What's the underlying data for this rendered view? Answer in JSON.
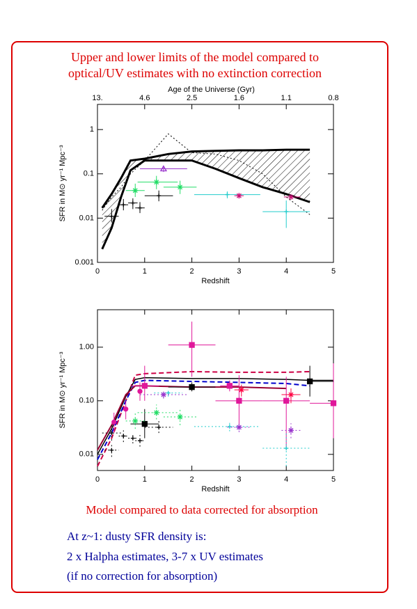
{
  "chart_data": [
    {
      "type": "scatter",
      "title": [
        "Upper and lower limits of the model compared to",
        "optical/UV estimates with no extinction correction"
      ],
      "xlabel": "Redshift",
      "ylabel": "SFR in M⊙ yr⁻¹ Mpc⁻³",
      "x2label": "Age of the Universe (Gyr)",
      "xlim": [
        0,
        5
      ],
      "xticks": [
        0,
        1,
        2,
        3,
        4,
        5
      ],
      "x2ticks": [
        {
          "value": 13,
          "label": "13."
        },
        4.6,
        2.5,
        1.6,
        1.1,
        0.8
      ],
      "ylim": [
        0.001,
        3.7
      ],
      "yticks": [
        0.001,
        0.01,
        0.1,
        1
      ],
      "log": true,
      "series": [
        {
          "style": "band",
          "color": "#000000",
          "x": [
            0.1,
            0.3,
            0.5,
            0.7,
            1,
            1.5,
            2,
            2.5,
            3,
            3.5,
            4,
            4.5
          ],
          "upper": [
            0.017,
            0.035,
            0.08,
            0.2,
            0.22,
            0.28,
            0.32,
            0.33,
            0.34,
            0.34,
            0.35,
            0.35
          ],
          "lower": [
            0.002,
            0.006,
            0.03,
            0.12,
            0.2,
            0.2,
            0.2,
            0.13,
            0.08,
            0.05,
            0.035,
            0.023
          ]
        },
        {
          "style": "line",
          "dash": "dotted",
          "width": 1,
          "color": "#000000",
          "x": [
            0.1,
            0.3,
            0.5,
            0.7,
            1,
            1.5,
            2,
            2.5,
            3,
            3.5,
            4,
            4.5
          ],
          "values": [
            0.015,
            0.03,
            0.05,
            0.1,
            0.2,
            0.8,
            0.3,
            0.28,
            0.2,
            0.1,
            0.03,
            0.012
          ]
        },
        {
          "style": "points",
          "marker": "plus",
          "color": "#000000",
          "err_dash": "solid",
          "x": [
            0.3,
            0.55,
            0.75,
            0.9,
            1.3
          ],
          "values": [
            0.011,
            0.02,
            0.022,
            0.017,
            0.032
          ],
          "x_low": [
            0.15,
            0.45,
            0.65,
            0.8,
            1.0
          ],
          "x_high": [
            0.45,
            0.65,
            0.85,
            1.0,
            1.6
          ],
          "y_low": [
            0.008,
            0.015,
            0.016,
            0.013,
            0.024
          ],
          "y_high": [
            0.016,
            0.027,
            0.028,
            0.023,
            0.042
          ]
        },
        {
          "style": "points",
          "marker": "star",
          "color": "#22dd66",
          "err_dash": "solid",
          "x": [
            0.8,
            1.25,
            1.75
          ],
          "values": [
            0.042,
            0.065,
            0.05
          ],
          "x_low": [
            0.6,
            0.85,
            1.4
          ],
          "x_high": [
            1.0,
            1.7,
            2.1
          ],
          "y_low": [
            0.03,
            0.045,
            0.035
          ],
          "y_high": [
            0.06,
            0.09,
            0.07
          ]
        },
        {
          "style": "points",
          "marker": "triangle",
          "color": "#9933cc",
          "err_dash": "solid",
          "x": [
            1.4
          ],
          "values": [
            0.13
          ],
          "x_low": [
            0.9
          ],
          "x_high": [
            1.9
          ],
          "y_low": [
            0.11
          ],
          "y_high": [
            0.15
          ]
        },
        {
          "style": "points",
          "marker": "plus",
          "color": "#22cccc",
          "err_dash": "solid",
          "x": [
            2.75,
            4
          ],
          "values": [
            0.034,
            0.014
          ],
          "x_low": [
            2.05,
            3.5
          ],
          "x_high": [
            3.45,
            4.5
          ],
          "y_low": [
            0.028,
            0.006
          ],
          "y_high": [
            0.04,
            0.025
          ]
        },
        {
          "style": "points",
          "marker": "star",
          "color": "#cc1177",
          "err_dash": "solid",
          "x": [
            3,
            4.1
          ],
          "values": [
            0.032,
            0.03
          ],
          "x_low": [
            2.9,
            3.95
          ],
          "x_high": [
            3.1,
            4.3
          ],
          "y_low": [
            0.028,
            0.026
          ],
          "y_high": [
            0.037,
            0.035
          ]
        }
      ]
    },
    {
      "type": "scatter",
      "title": "Model compared to data corrected for absorption",
      "xlabel": "Redshift",
      "ylabel": "SFR in M⊙ yr⁻¹ Mpc⁻³",
      "xlim": [
        0,
        5
      ],
      "xticks": [
        0,
        1,
        2,
        3,
        4,
        5
      ],
      "ylim": [
        0.005,
        5
      ],
      "yticks": [
        {
          "value": 1,
          "label": "1.00"
        },
        {
          "value": 0.1,
          "label": "0.10"
        },
        0.01
      ],
      "log": true,
      "series": [
        {
          "style": "line",
          "dash": "dashed",
          "width": 2,
          "color": "#cc0044",
          "x": [
            0,
            0.3,
            0.6,
            0.8,
            1,
            2,
            3,
            4,
            4.5
          ],
          "values": [
            0.006,
            0.02,
            0.1,
            0.3,
            0.32,
            0.35,
            0.34,
            0.34,
            0.35
          ]
        },
        {
          "style": "line",
          "dash": "solid",
          "width": 1.5,
          "color": "#000000",
          "x": [
            0,
            0.3,
            0.6,
            0.8,
            1,
            2,
            3,
            4,
            4.5,
            5
          ],
          "values": [
            0.01,
            0.03,
            0.12,
            0.25,
            0.27,
            0.26,
            0.26,
            0.25,
            0.24,
            0.24
          ]
        },
        {
          "style": "line",
          "dash": "dashed",
          "width": 2,
          "color": "#0000cc",
          "x": [
            0,
            0.3,
            0.6,
            0.8,
            1,
            2,
            3,
            4,
            4.5
          ],
          "values": [
            0.008,
            0.025,
            0.1,
            0.22,
            0.24,
            0.23,
            0.22,
            0.21,
            0.19
          ]
        },
        {
          "style": "line",
          "dash": "solid",
          "width": 2,
          "color": "#990033",
          "x": [
            0,
            0.3,
            0.6,
            0.8,
            1,
            2,
            3,
            4
          ],
          "values": [
            0.012,
            0.035,
            0.13,
            0.19,
            0.19,
            0.18,
            0.18,
            0.17
          ]
        },
        {
          "style": "points",
          "marker": "square",
          "color": "#e0179a",
          "err_dash": "solid",
          "x": [
            2,
            3,
            4,
            5,
            1,
            2.8
          ],
          "values": [
            1.1,
            0.1,
            0.1,
            0.09,
            0.19,
            0.19
          ],
          "x_low": [
            1.5,
            2.5,
            3.5,
            4.5,
            0.7,
            2.6
          ],
          "x_high": [
            2.5,
            3.5,
            4.5,
            5.5,
            1.3,
            3.0
          ],
          "y_low": [
            0.28,
            0.03,
            0.012,
            0.02,
            0.1,
            0.15
          ],
          "y_high": [
            3.0,
            0.3,
            0.28,
            0.5,
            0.45,
            0.24
          ]
        },
        {
          "style": "points",
          "marker": "star",
          "color": "#ff0040",
          "err_dash": "solid",
          "x": [
            3.05,
            4.1
          ],
          "values": [
            0.16,
            0.13
          ],
          "x_low": [
            2.9,
            3.9
          ],
          "x_high": [
            3.2,
            4.3
          ],
          "y_low": [
            0.12,
            0.09
          ],
          "y_high": [
            0.2,
            0.17
          ]
        },
        {
          "style": "points",
          "marker": "square",
          "color": "#000000",
          "err_dash": "solid",
          "x": [
            4.5,
            2,
            1
          ],
          "values": [
            0.23,
            0.18,
            0.037
          ],
          "x_low": [
            4.5,
            1.5,
            0.7
          ],
          "x_high": [
            5,
            2.5,
            1.3
          ],
          "y_low": [
            0.12,
            0.15,
            0.02
          ],
          "y_high": [
            0.45,
            0.22,
            0.07
          ]
        },
        {
          "style": "points",
          "marker": "plus",
          "color": "#22cccc",
          "err_dash": "dotted",
          "x": [
            2.8,
            4,
            1.5
          ],
          "values": [
            0.033,
            0.013,
            0.14
          ],
          "x_low": [
            2.05,
            3.5,
            1.2
          ],
          "x_high": [
            3.45,
            4.5,
            1.8
          ],
          "y_low": [
            0.027,
            0.006,
            0.12
          ],
          "y_high": [
            0.04,
            0.025,
            0.16
          ]
        },
        {
          "style": "points",
          "marker": "star",
          "color": "#9933cc",
          "err_dash": "dotted",
          "x": [
            3,
            4.1,
            1.4
          ],
          "values": [
            0.032,
            0.028,
            0.13
          ],
          "x_low": [
            2.75,
            3.9,
            0.9
          ],
          "x_high": [
            3.25,
            4.3,
            1.9
          ],
          "y_low": [
            0.026,
            0.02,
            0.11
          ],
          "y_high": [
            0.038,
            0.038,
            0.15
          ]
        },
        {
          "style": "points",
          "marker": "star",
          "color": "#22dd66",
          "err_dash": "dotted",
          "x": [
            0.8,
            1.25,
            1.75
          ],
          "values": [
            0.042,
            0.06,
            0.05
          ],
          "x_low": [
            0.6,
            0.85,
            1.4
          ],
          "x_high": [
            1.0,
            1.7,
            2.1
          ],
          "y_low": [
            0.03,
            0.045,
            0.035
          ],
          "y_high": [
            0.06,
            0.085,
            0.07
          ]
        },
        {
          "style": "points",
          "marker": "plus",
          "color": "#000000",
          "err_dash": "dotted",
          "x": [
            0.3,
            0.55,
            0.75,
            0.9,
            1.3,
            0.3
          ],
          "values": [
            0.012,
            0.022,
            0.02,
            0.018,
            0.032,
            0.025
          ],
          "x_low": [
            0.15,
            0.45,
            0.65,
            0.8,
            1.0,
            0.1
          ],
          "x_high": [
            0.45,
            0.65,
            0.85,
            1.0,
            1.6,
            0.5
          ],
          "y_low": [
            0.009,
            0.017,
            0.016,
            0.014,
            0.025,
            0.018
          ],
          "y_high": [
            0.016,
            0.028,
            0.025,
            0.023,
            0.042,
            0.035
          ]
        },
        {
          "style": "points",
          "marker": "circle",
          "color": "#e0179a",
          "err_dash": "solid",
          "x": [
            0.35,
            0.6,
            0.9
          ],
          "values": [
            0.04,
            0.07,
            0.15
          ],
          "x_low": [
            0.35,
            0.6,
            0.9
          ],
          "x_high": [
            0.35,
            0.6,
            0.9
          ],
          "y_low": [
            0.025,
            0.045,
            0.1
          ],
          "y_high": [
            0.06,
            0.1,
            0.22
          ]
        }
      ]
    }
  ],
  "notes": [
    "At z~1: dusty SFR density is:",
    "2 x Halpha estimates, 3-7 x UV estimates",
    "(if no correction for absorption)"
  ]
}
